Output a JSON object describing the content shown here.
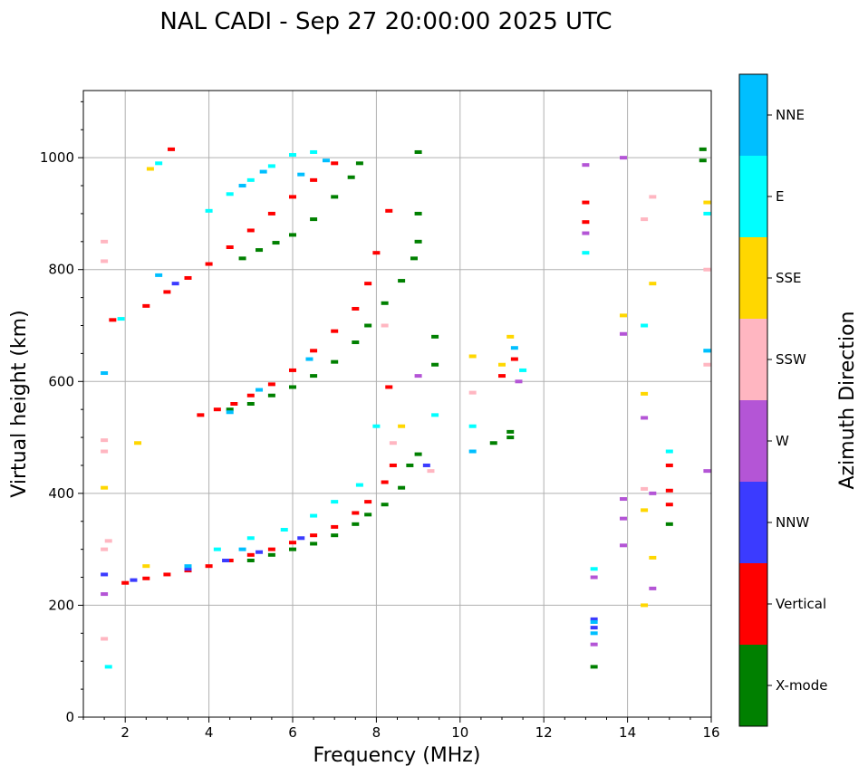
{
  "chart_data": {
    "type": "scatter",
    "title": "NAL CADI - Sep 27 20:00:00 2025 UTC",
    "xlabel": "Frequency (MHz)",
    "ylabel": "Virtual height (km)",
    "xlim": [
      1,
      16
    ],
    "ylim": [
      0,
      1120
    ],
    "xticks": [
      2,
      4,
      6,
      8,
      10,
      12,
      14,
      16
    ],
    "yticks": [
      0,
      200,
      400,
      600,
      800,
      1000
    ],
    "grid": true,
    "colorbar": {
      "label": "Azimuth Direction",
      "categories": [
        {
          "name": "X-mode",
          "color": "#008000"
        },
        {
          "name": "Vertical",
          "color": "#ff0000"
        },
        {
          "name": "NNW",
          "color": "#3b3bff"
        },
        {
          "name": "W",
          "color": "#b455d6"
        },
        {
          "name": "SSW",
          "color": "#ffb6c1"
        },
        {
          "name": "SSE",
          "color": "#ffd700"
        },
        {
          "name": "E",
          "color": "#00ffff"
        },
        {
          "name": "NNE",
          "color": "#00bfff"
        }
      ]
    },
    "series": [
      {
        "name": "X-mode",
        "points": [
          [
            5.0,
            280
          ],
          [
            5.5,
            290
          ],
          [
            6.0,
            300
          ],
          [
            6.5,
            310
          ],
          [
            7.0,
            325
          ],
          [
            7.5,
            345
          ],
          [
            7.8,
            362
          ],
          [
            8.2,
            380
          ],
          [
            8.6,
            410
          ],
          [
            8.8,
            450
          ],
          [
            9.0,
            470
          ],
          [
            4.5,
            550
          ],
          [
            5.0,
            560
          ],
          [
            5.5,
            575
          ],
          [
            6.0,
            590
          ],
          [
            6.5,
            610
          ],
          [
            7.0,
            635
          ],
          [
            7.5,
            670
          ],
          [
            7.8,
            700
          ],
          [
            8.2,
            740
          ],
          [
            8.6,
            780
          ],
          [
            8.9,
            820
          ],
          [
            9.0,
            850
          ],
          [
            4.8,
            820
          ],
          [
            5.2,
            835
          ],
          [
            5.6,
            848
          ],
          [
            6.0,
            862
          ],
          [
            6.5,
            890
          ],
          [
            7.0,
            930
          ],
          [
            7.4,
            965
          ],
          [
            7.6,
            990
          ],
          [
            9.0,
            900
          ],
          [
            9.0,
            1010
          ],
          [
            13.2,
            90
          ],
          [
            15.0,
            345
          ],
          [
            15.8,
            995
          ],
          [
            15.8,
            1015
          ],
          [
            11.2,
            500
          ],
          [
            11.2,
            510
          ],
          [
            10.8,
            490
          ],
          [
            9.4,
            630
          ],
          [
            9.4,
            680
          ]
        ]
      },
      {
        "name": "Vertical",
        "points": [
          [
            2.0,
            240
          ],
          [
            2.5,
            248
          ],
          [
            3.0,
            255
          ],
          [
            3.5,
            262
          ],
          [
            4.0,
            270
          ],
          [
            4.5,
            280
          ],
          [
            5.0,
            290
          ],
          [
            5.5,
            300
          ],
          [
            6.0,
            312
          ],
          [
            6.5,
            325
          ],
          [
            7.0,
            340
          ],
          [
            7.5,
            365
          ],
          [
            7.8,
            385
          ],
          [
            8.2,
            420
          ],
          [
            8.4,
            450
          ],
          [
            3.8,
            540
          ],
          [
            4.2,
            550
          ],
          [
            4.6,
            560
          ],
          [
            5.0,
            575
          ],
          [
            5.5,
            595
          ],
          [
            6.0,
            620
          ],
          [
            6.5,
            655
          ],
          [
            7.0,
            690
          ],
          [
            7.5,
            730
          ],
          [
            7.8,
            775
          ],
          [
            8.0,
            830
          ],
          [
            8.3,
            590
          ],
          [
            2.5,
            735
          ],
          [
            3.0,
            760
          ],
          [
            3.5,
            785
          ],
          [
            4.0,
            810
          ],
          [
            4.5,
            840
          ],
          [
            5.0,
            870
          ],
          [
            5.5,
            900
          ],
          [
            6.0,
            930
          ],
          [
            6.5,
            960
          ],
          [
            7.0,
            990
          ],
          [
            8.3,
            905
          ],
          [
            1.7,
            710
          ],
          [
            3.1,
            1015
          ],
          [
            13.0,
            920
          ],
          [
            13.0,
            885
          ],
          [
            15.0,
            405
          ],
          [
            15.0,
            450
          ],
          [
            15.0,
            380
          ],
          [
            11.3,
            640
          ],
          [
            11.0,
            610
          ]
        ]
      },
      {
        "name": "NNW",
        "points": [
          [
            1.5,
            255
          ],
          [
            2.2,
            245
          ],
          [
            3.5,
            265
          ],
          [
            4.4,
            280
          ],
          [
            5.2,
            295
          ],
          [
            13.2,
            175
          ],
          [
            13.2,
            160
          ],
          [
            9.2,
            450
          ],
          [
            6.2,
            320
          ],
          [
            3.2,
            775
          ]
        ]
      },
      {
        "name": "W",
        "points": [
          [
            1.5,
            220
          ],
          [
            13.0,
            987
          ],
          [
            13.9,
            1000
          ],
          [
            13.9,
            685
          ],
          [
            14.4,
            535
          ],
          [
            13.9,
            390
          ],
          [
            13.9,
            355
          ],
          [
            13.9,
            307
          ],
          [
            14.6,
            230
          ],
          [
            14.6,
            400
          ],
          [
            15.9,
            440
          ],
          [
            13.2,
            250
          ],
          [
            13.2,
            130
          ],
          [
            13.0,
            865
          ],
          [
            9.0,
            610
          ],
          [
            11.4,
            600
          ]
        ]
      },
      {
        "name": "SSW",
        "points": [
          [
            1.5,
            850
          ],
          [
            1.5,
            815
          ],
          [
            1.5,
            495
          ],
          [
            1.5,
            475
          ],
          [
            1.6,
            315
          ],
          [
            1.5,
            300
          ],
          [
            1.5,
            140
          ],
          [
            9.3,
            440
          ],
          [
            8.4,
            490
          ],
          [
            14.4,
            890
          ],
          [
            14.6,
            930
          ],
          [
            14.4,
            408
          ],
          [
            15.9,
            800
          ],
          [
            15.9,
            630
          ],
          [
            10.3,
            580
          ],
          [
            8.2,
            700
          ]
        ]
      },
      {
        "name": "SSE",
        "points": [
          [
            1.5,
            410
          ],
          [
            2.6,
            980
          ],
          [
            2.5,
            270
          ],
          [
            2.3,
            490
          ],
          [
            14.4,
            200
          ],
          [
            14.4,
            370
          ],
          [
            14.6,
            285
          ],
          [
            14.6,
            775
          ],
          [
            15.9,
            920
          ],
          [
            11.2,
            680
          ],
          [
            11.0,
            630
          ],
          [
            13.9,
            718
          ],
          [
            10.3,
            645
          ],
          [
            14.4,
            578
          ],
          [
            8.6,
            520
          ]
        ]
      },
      {
        "name": "E",
        "points": [
          [
            1.6,
            90
          ],
          [
            1.9,
            712
          ],
          [
            2.8,
            990
          ],
          [
            4.0,
            905
          ],
          [
            4.5,
            935
          ],
          [
            5.0,
            960
          ],
          [
            5.5,
            985
          ],
          [
            6.0,
            1005
          ],
          [
            6.5,
            1010
          ],
          [
            4.2,
            300
          ],
          [
            5.0,
            320
          ],
          [
            5.8,
            335
          ],
          [
            6.5,
            360
          ],
          [
            7.0,
            385
          ],
          [
            7.6,
            415
          ],
          [
            15.9,
            900
          ],
          [
            15.9,
            655
          ],
          [
            15.0,
            475
          ],
          [
            14.4,
            700
          ],
          [
            13.0,
            830
          ],
          [
            11.5,
            620
          ],
          [
            10.3,
            520
          ],
          [
            8.0,
            520
          ],
          [
            9.4,
            540
          ],
          [
            13.2,
            265
          ]
        ]
      },
      {
        "name": "NNE",
        "points": [
          [
            1.5,
            615
          ],
          [
            4.8,
            950
          ],
          [
            5.3,
            975
          ],
          [
            6.2,
            970
          ],
          [
            6.8,
            995
          ],
          [
            4.5,
            545
          ],
          [
            5.2,
            585
          ],
          [
            6.4,
            640
          ],
          [
            3.5,
            270
          ],
          [
            4.8,
            300
          ],
          [
            13.2,
            170
          ],
          [
            13.2,
            150
          ],
          [
            11.3,
            660
          ],
          [
            10.3,
            475
          ],
          [
            15.9,
            655
          ],
          [
            2.8,
            790
          ]
        ]
      }
    ]
  }
}
